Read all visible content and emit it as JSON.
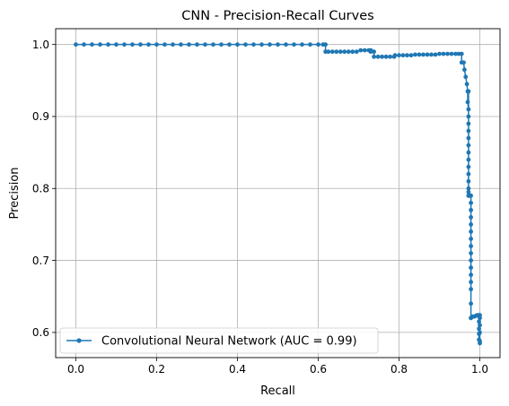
{
  "chart_data": {
    "type": "line",
    "title": "CNN - Precision-Recall Curves",
    "xlabel": "Recall",
    "ylabel": "Precision",
    "xlim": [
      -0.05,
      1.05
    ],
    "ylim": [
      0.565,
      1.022
    ],
    "xticks": [
      0.0,
      0.2,
      0.4,
      0.6,
      0.8,
      1.0
    ],
    "xtick_labels": [
      "0.0",
      "0.2",
      "0.4",
      "0.6",
      "0.8",
      "1.0"
    ],
    "yticks": [
      0.6,
      0.7,
      0.8,
      0.9,
      1.0
    ],
    "ytick_labels": [
      "0.6",
      "0.7",
      "0.8",
      "0.9",
      "1.0"
    ],
    "grid": true,
    "legend": "lower-left",
    "color": "#1f77b4",
    "series": [
      {
        "name": "Convolutional Neural Network (AUC = 0.99)",
        "x": [
          0.0,
          0.02,
          0.04,
          0.06,
          0.08,
          0.1,
          0.12,
          0.14,
          0.16,
          0.18,
          0.2,
          0.22,
          0.24,
          0.26,
          0.28,
          0.3,
          0.32,
          0.34,
          0.36,
          0.38,
          0.4,
          0.42,
          0.44,
          0.46,
          0.48,
          0.5,
          0.52,
          0.54,
          0.56,
          0.58,
          0.6,
          0.612,
          0.618,
          0.618,
          0.625,
          0.635,
          0.645,
          0.655,
          0.665,
          0.675,
          0.685,
          0.695,
          0.705,
          0.715,
          0.725,
          0.73,
          0.73,
          0.738,
          0.738,
          0.748,
          0.758,
          0.768,
          0.778,
          0.788,
          0.79,
          0.8,
          0.81,
          0.82,
          0.83,
          0.84,
          0.85,
          0.86,
          0.87,
          0.88,
          0.89,
          0.9,
          0.91,
          0.92,
          0.93,
          0.94,
          0.948,
          0.955,
          0.955,
          0.96,
          0.962,
          0.965,
          0.968,
          0.97,
          0.97,
          0.972,
          0.972,
          0.972,
          0.972,
          0.972,
          0.972,
          0.972,
          0.972,
          0.972,
          0.972,
          0.972,
          0.972,
          0.972,
          0.972,
          0.972,
          0.972,
          0.974,
          0.976,
          0.978,
          0.978,
          0.978,
          0.978,
          0.978,
          0.978,
          0.978,
          0.978,
          0.978,
          0.978,
          0.978,
          0.978,
          0.978,
          0.978,
          0.978,
          0.978,
          0.978,
          0.982,
          0.986,
          0.99,
          0.994,
          0.998,
          0.998,
          0.998,
          0.998,
          0.998,
          1.0,
          1.0,
          1.0,
          1.0,
          1.0,
          1.0
        ],
        "y": [
          1.0,
          1.0,
          1.0,
          1.0,
          1.0,
          1.0,
          1.0,
          1.0,
          1.0,
          1.0,
          1.0,
          1.0,
          1.0,
          1.0,
          1.0,
          1.0,
          1.0,
          1.0,
          1.0,
          1.0,
          1.0,
          1.0,
          1.0,
          1.0,
          1.0,
          1.0,
          1.0,
          1.0,
          1.0,
          1.0,
          1.0,
          1.0,
          1.0,
          0.99,
          0.99,
          0.99,
          0.99,
          0.99,
          0.99,
          0.99,
          0.99,
          0.99,
          0.992,
          0.992,
          0.992,
          0.992,
          0.99,
          0.99,
          0.983,
          0.983,
          0.983,
          0.983,
          0.983,
          0.983,
          0.985,
          0.985,
          0.985,
          0.985,
          0.985,
          0.986,
          0.986,
          0.986,
          0.986,
          0.986,
          0.986,
          0.987,
          0.987,
          0.987,
          0.987,
          0.987,
          0.987,
          0.987,
          0.975,
          0.975,
          0.965,
          0.955,
          0.945,
          0.935,
          0.92,
          0.91,
          0.9,
          0.89,
          0.88,
          0.87,
          0.86,
          0.85,
          0.84,
          0.83,
          0.82,
          0.81,
          0.8,
          0.795,
          0.79,
          0.935,
          0.79,
          0.79,
          0.79,
          0.79,
          0.78,
          0.77,
          0.76,
          0.75,
          0.74,
          0.73,
          0.72,
          0.71,
          0.7,
          0.69,
          0.68,
          0.67,
          0.66,
          0.64,
          0.62,
          0.62,
          0.622,
          0.622,
          0.623,
          0.624,
          0.624,
          0.615,
          0.605,
          0.598,
          0.59,
          0.585,
          0.588,
          0.6,
          0.61,
          0.62,
          0.624
        ]
      }
    ]
  }
}
